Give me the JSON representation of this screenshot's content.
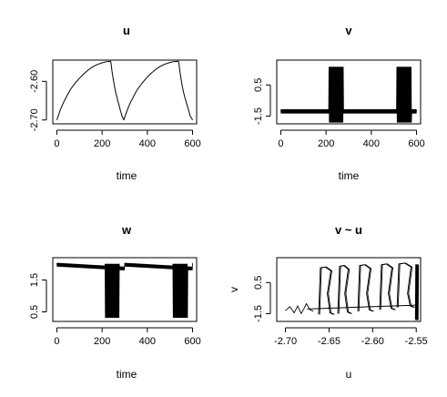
{
  "chart_data": [
    {
      "type": "line",
      "title": "u",
      "xlabel": "time",
      "ylabel": "",
      "xlim": [
        -18,
        618
      ],
      "ylim": [
        -2.71,
        -2.545
      ],
      "xticks": [
        0,
        200,
        400,
        600
      ],
      "xtick_labels": [
        "0",
        "200",
        "400",
        "600"
      ],
      "yticks": [
        -2.7,
        -2.6
      ],
      "ytick_labels": [
        "-2.70",
        "-2.60"
      ],
      "grid": false,
      "series": [
        {
          "color": "#000000",
          "points": [
            [
              0,
              -2.7
            ],
            [
              15,
              -2.674
            ],
            [
              30,
              -2.654
            ],
            [
              45,
              -2.637
            ],
            [
              60,
              -2.621
            ],
            [
              80,
              -2.605
            ],
            [
              100,
              -2.592
            ],
            [
              120,
              -2.58
            ],
            [
              140,
              -2.57
            ],
            [
              160,
              -2.562
            ],
            [
              180,
              -2.556
            ],
            [
              200,
              -2.552
            ],
            [
              220,
              -2.549
            ],
            [
              238,
              -2.548
            ],
            [
              240,
              -2.555
            ],
            [
              244,
              -2.575
            ],
            [
              250,
              -2.597
            ],
            [
              256,
              -2.617
            ],
            [
              260,
              -2.628
            ],
            [
              266,
              -2.642
            ],
            [
              270,
              -2.652
            ],
            [
              276,
              -2.664
            ],
            [
              282,
              -2.678
            ],
            [
              288,
              -2.69
            ],
            [
              296,
              -2.7
            ],
            [
              310,
              -2.676
            ],
            [
              325,
              -2.655
            ],
            [
              340,
              -2.638
            ],
            [
              355,
              -2.622
            ],
            [
              375,
              -2.606
            ],
            [
              395,
              -2.592
            ],
            [
              415,
              -2.58
            ],
            [
              435,
              -2.57
            ],
            [
              455,
              -2.562
            ],
            [
              475,
              -2.556
            ],
            [
              495,
              -2.552
            ],
            [
              515,
              -2.549
            ],
            [
              537,
              -2.548
            ],
            [
              540,
              -2.555
            ],
            [
              544,
              -2.575
            ],
            [
              550,
              -2.597
            ],
            [
              556,
              -2.617
            ],
            [
              560,
              -2.628
            ],
            [
              566,
              -2.642
            ],
            [
              572,
              -2.654
            ],
            [
              578,
              -2.666
            ],
            [
              584,
              -2.678
            ],
            [
              590,
              -2.69
            ],
            [
              600,
              -2.7
            ]
          ]
        }
      ]
    },
    {
      "type": "line",
      "title": "v",
      "xlabel": "time",
      "ylabel": "",
      "xlim": [
        -18,
        618
      ],
      "ylim": [
        -2.0,
        2.1
      ],
      "xticks": [
        0,
        200,
        400,
        600
      ],
      "xtick_labels": [
        "0",
        "200",
        "400",
        "600"
      ],
      "yticks": [
        -1.5,
        0.5
      ],
      "ytick_labels": [
        "-1.5",
        "0.5"
      ],
      "grid": false,
      "series": [
        {
          "color": "#000000",
          "base": -1.2,
          "ripple": 0.12,
          "bursts": [
            [
              212,
              276
            ],
            [
              512,
              578
            ]
          ],
          "burst_high": 1.65,
          "burst_low": -1.9
        }
      ]
    },
    {
      "type": "line",
      "title": "w",
      "xlabel": "time",
      "ylabel": "",
      "xlim": [
        -18,
        618
      ],
      "ylim": [
        0.2,
        2.2
      ],
      "xticks": [
        0,
        200,
        400,
        600
      ],
      "xtick_labels": [
        "0",
        "200",
        "400",
        "600"
      ],
      "yticks": [
        0.5,
        1.5
      ],
      "ytick_labels": [
        "0.5",
        "1.5"
      ],
      "grid": false,
      "series": [
        {
          "color": "#000000",
          "base_start": 1.98,
          "base_end": 1.86,
          "ripple": 0.05,
          "bursts": [
            [
              212,
              276
            ],
            [
              512,
              578
            ]
          ],
          "burst_high": 2.0,
          "burst_low": 0.32
        }
      ]
    },
    {
      "type": "line",
      "title": "v ~ u",
      "xlabel": "u",
      "ylabel": "v",
      "xlim": [
        -2.71,
        -2.545
      ],
      "ylim": [
        -2.0,
        2.1
      ],
      "xticks": [
        -2.7,
        -2.65,
        -2.6,
        -2.55
      ],
      "xtick_labels": [
        "-2.70",
        "-2.65",
        "-2.60",
        "-2.55"
      ],
      "yticks": [
        -1.5,
        0.5
      ],
      "ytick_labels": [
        "-1.5",
        "0.5"
      ],
      "grid": false,
      "series": [
        {
          "color": "#000000",
          "baseline": [
            [
              -2.675,
              -1.2
            ],
            [
              -2.55,
              -0.95
            ]
          ],
          "loops": [
            {
              "u_low": -2.662,
              "u_high": -2.648,
              "v_low": -1.55,
              "v_high": 1.45
            },
            {
              "u_low": -2.64,
              "u_high": -2.628,
              "v_low": -1.5,
              "v_high": 1.55
            },
            {
              "u_low": -2.617,
              "u_high": -2.603,
              "v_low": -1.35,
              "v_high": 1.6
            },
            {
              "u_low": -2.592,
              "u_high": -2.578,
              "v_low": -1.25,
              "v_high": 1.65
            },
            {
              "u_low": -2.572,
              "u_high": -2.556,
              "v_low": -1.1,
              "v_high": 1.7
            }
          ],
          "tail": [
            [
              -2.7,
              -1.3
            ],
            [
              -2.695,
              -1.05
            ],
            [
              -2.69,
              -1.45
            ],
            [
              -2.686,
              -1.0
            ],
            [
              -2.682,
              -1.5
            ],
            [
              -2.679,
              -1.2
            ],
            [
              -2.676,
              -0.85
            ],
            [
              -2.672,
              -1.25
            ],
            [
              -2.668,
              -1.35
            ]
          ],
          "spike_u": -2.549,
          "spike_v": [
            -1.9,
            1.65
          ]
        }
      ]
    }
  ]
}
